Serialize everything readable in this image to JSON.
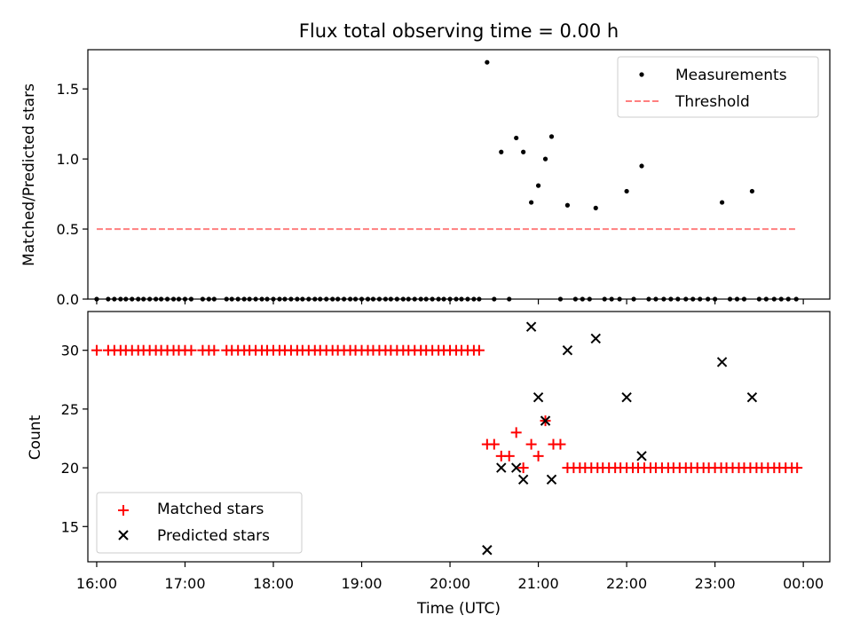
{
  "figure": {
    "title": "Flux total observing time = 0.00 h"
  },
  "chart_data": [
    {
      "type": "scatter",
      "panel": "top",
      "ylabel": "Matched/Predicted stars",
      "xlabel": "",
      "xlim": [
        15.9,
        24.3
      ],
      "ylim": [
        0,
        1.78
      ],
      "yticks": [
        0.0,
        0.5,
        1.0,
        1.5
      ],
      "ytick_labels": [
        "0.0",
        "0.5",
        "1.0",
        "1.5"
      ],
      "legend": {
        "placement": "upper-right",
        "entries": [
          "Measurements",
          "Threshold"
        ]
      },
      "series": [
        {
          "name": "Measurements",
          "kind": "points",
          "color": "#000000",
          "points": [
            [
              16.0,
              0
            ],
            [
              16.13,
              0
            ],
            [
              16.2,
              0
            ],
            [
              16.27,
              0
            ],
            [
              16.33,
              0
            ],
            [
              16.4,
              0
            ],
            [
              16.47,
              0
            ],
            [
              16.53,
              0
            ],
            [
              16.6,
              0
            ],
            [
              16.67,
              0
            ],
            [
              16.73,
              0
            ],
            [
              16.8,
              0
            ],
            [
              16.87,
              0
            ],
            [
              16.93,
              0
            ],
            [
              17.0,
              0
            ],
            [
              17.07,
              0
            ],
            [
              17.2,
              0
            ],
            [
              17.27,
              0
            ],
            [
              17.33,
              0
            ],
            [
              17.47,
              0
            ],
            [
              17.53,
              0
            ],
            [
              17.6,
              0
            ],
            [
              17.67,
              0
            ],
            [
              17.73,
              0
            ],
            [
              17.8,
              0
            ],
            [
              17.87,
              0
            ],
            [
              17.93,
              0
            ],
            [
              18.0,
              0
            ],
            [
              18.07,
              0
            ],
            [
              18.13,
              0
            ],
            [
              18.2,
              0
            ],
            [
              18.27,
              0
            ],
            [
              18.33,
              0
            ],
            [
              18.4,
              0
            ],
            [
              18.47,
              0
            ],
            [
              18.53,
              0
            ],
            [
              18.6,
              0
            ],
            [
              18.67,
              0
            ],
            [
              18.73,
              0
            ],
            [
              18.8,
              0
            ],
            [
              18.87,
              0
            ],
            [
              18.93,
              0
            ],
            [
              19.0,
              0
            ],
            [
              19.07,
              0
            ],
            [
              19.13,
              0
            ],
            [
              19.2,
              0
            ],
            [
              19.27,
              0
            ],
            [
              19.33,
              0
            ],
            [
              19.4,
              0
            ],
            [
              19.47,
              0
            ],
            [
              19.53,
              0
            ],
            [
              19.6,
              0
            ],
            [
              19.67,
              0
            ],
            [
              19.73,
              0
            ],
            [
              19.8,
              0
            ],
            [
              19.87,
              0
            ],
            [
              19.93,
              0
            ],
            [
              20.0,
              0
            ],
            [
              20.07,
              0
            ],
            [
              20.13,
              0
            ],
            [
              20.2,
              0
            ],
            [
              20.27,
              0
            ],
            [
              20.33,
              0
            ],
            [
              20.42,
              1.69
            ],
            [
              20.5,
              0
            ],
            [
              20.58,
              1.05
            ],
            [
              20.67,
              0
            ],
            [
              20.75,
              1.15
            ],
            [
              20.83,
              1.05
            ],
            [
              20.92,
              0.69
            ],
            [
              21.0,
              0.81
            ],
            [
              21.08,
              1.0
            ],
            [
              21.15,
              1.16
            ],
            [
              21.25,
              0
            ],
            [
              21.33,
              0.67
            ],
            [
              21.42,
              0
            ],
            [
              21.5,
              0
            ],
            [
              21.58,
              0
            ],
            [
              21.65,
              0.65
            ],
            [
              21.75,
              0
            ],
            [
              21.83,
              0
            ],
            [
              21.92,
              0
            ],
            [
              22.0,
              0.77
            ],
            [
              22.08,
              0
            ],
            [
              22.17,
              0.95
            ],
            [
              22.25,
              0
            ],
            [
              22.33,
              0
            ],
            [
              22.42,
              0
            ],
            [
              22.5,
              0
            ],
            [
              22.58,
              0
            ],
            [
              22.67,
              0
            ],
            [
              22.75,
              0
            ],
            [
              22.83,
              0
            ],
            [
              22.92,
              0
            ],
            [
              23.0,
              0
            ],
            [
              23.08,
              0.69
            ],
            [
              23.17,
              0
            ],
            [
              23.25,
              0
            ],
            [
              23.33,
              0
            ],
            [
              23.42,
              0.77
            ],
            [
              23.5,
              0
            ],
            [
              23.58,
              0
            ],
            [
              23.67,
              0
            ],
            [
              23.75,
              0
            ],
            [
              23.83,
              0
            ],
            [
              23.92,
              0
            ]
          ]
        },
        {
          "name": "Threshold",
          "kind": "dashed-line",
          "color": "#ff7f7f",
          "points": [
            [
              16.0,
              0.5
            ],
            [
              23.92,
              0.5
            ]
          ]
        }
      ]
    },
    {
      "type": "scatter",
      "panel": "bottom",
      "ylabel": "Count",
      "xlabel": "Time (UTC)",
      "xlim": [
        15.9,
        24.3
      ],
      "ylim": [
        12,
        33.3
      ],
      "yticks": [
        15,
        20,
        25,
        30
      ],
      "ytick_labels": [
        "15",
        "20",
        "25",
        "30"
      ],
      "xticks": [
        16,
        17,
        18,
        19,
        20,
        21,
        22,
        23,
        24
      ],
      "xtick_labels": [
        "16:00",
        "17:00",
        "18:00",
        "19:00",
        "20:00",
        "21:00",
        "22:00",
        "23:00",
        "00:00"
      ],
      "legend": {
        "placement": "lower-left",
        "entries": [
          "Matched stars",
          "Predicted stars"
        ]
      },
      "series": [
        {
          "name": "Matched stars",
          "kind": "plus",
          "color": "#ff0000",
          "points": [
            [
              16.0,
              30
            ],
            [
              16.13,
              30
            ],
            [
              16.2,
              30
            ],
            [
              16.27,
              30
            ],
            [
              16.33,
              30
            ],
            [
              16.4,
              30
            ],
            [
              16.47,
              30
            ],
            [
              16.53,
              30
            ],
            [
              16.6,
              30
            ],
            [
              16.67,
              30
            ],
            [
              16.73,
              30
            ],
            [
              16.8,
              30
            ],
            [
              16.87,
              30
            ],
            [
              16.93,
              30
            ],
            [
              17.0,
              30
            ],
            [
              17.07,
              30
            ],
            [
              17.2,
              30
            ],
            [
              17.27,
              30
            ],
            [
              17.33,
              30
            ],
            [
              17.47,
              30
            ],
            [
              17.53,
              30
            ],
            [
              17.6,
              30
            ],
            [
              17.67,
              30
            ],
            [
              17.73,
              30
            ],
            [
              17.8,
              30
            ],
            [
              17.87,
              30
            ],
            [
              17.93,
              30
            ],
            [
              18.0,
              30
            ],
            [
              18.07,
              30
            ],
            [
              18.13,
              30
            ],
            [
              18.2,
              30
            ],
            [
              18.27,
              30
            ],
            [
              18.33,
              30
            ],
            [
              18.4,
              30
            ],
            [
              18.47,
              30
            ],
            [
              18.53,
              30
            ],
            [
              18.6,
              30
            ],
            [
              18.67,
              30
            ],
            [
              18.73,
              30
            ],
            [
              18.8,
              30
            ],
            [
              18.87,
              30
            ],
            [
              18.93,
              30
            ],
            [
              19.0,
              30
            ],
            [
              19.07,
              30
            ],
            [
              19.13,
              30
            ],
            [
              19.2,
              30
            ],
            [
              19.27,
              30
            ],
            [
              19.33,
              30
            ],
            [
              19.4,
              30
            ],
            [
              19.47,
              30
            ],
            [
              19.53,
              30
            ],
            [
              19.6,
              30
            ],
            [
              19.67,
              30
            ],
            [
              19.73,
              30
            ],
            [
              19.8,
              30
            ],
            [
              19.87,
              30
            ],
            [
              19.93,
              30
            ],
            [
              20.0,
              30
            ],
            [
              20.07,
              30
            ],
            [
              20.13,
              30
            ],
            [
              20.2,
              30
            ],
            [
              20.27,
              30
            ],
            [
              20.33,
              30
            ],
            [
              20.42,
              22
            ],
            [
              20.5,
              22
            ],
            [
              20.58,
              21
            ],
            [
              20.67,
              21
            ],
            [
              20.75,
              23
            ],
            [
              20.83,
              20
            ],
            [
              20.92,
              22
            ],
            [
              21.0,
              21
            ],
            [
              21.08,
              24
            ],
            [
              21.17,
              22
            ],
            [
              21.25,
              22
            ],
            [
              21.33,
              20
            ],
            [
              21.4,
              20
            ],
            [
              21.47,
              20
            ],
            [
              21.53,
              20
            ],
            [
              21.6,
              20
            ],
            [
              21.67,
              20
            ],
            [
              21.73,
              20
            ],
            [
              21.8,
              20
            ],
            [
              21.87,
              20
            ],
            [
              21.93,
              20
            ],
            [
              22.0,
              20
            ],
            [
              22.07,
              20
            ],
            [
              22.13,
              20
            ],
            [
              22.2,
              20
            ],
            [
              22.27,
              20
            ],
            [
              22.33,
              20
            ],
            [
              22.4,
              20
            ],
            [
              22.47,
              20
            ],
            [
              22.53,
              20
            ],
            [
              22.6,
              20
            ],
            [
              22.67,
              20
            ],
            [
              22.73,
              20
            ],
            [
              22.8,
              20
            ],
            [
              22.87,
              20
            ],
            [
              22.93,
              20
            ],
            [
              23.0,
              20
            ],
            [
              23.07,
              20
            ],
            [
              23.13,
              20
            ],
            [
              23.2,
              20
            ],
            [
              23.27,
              20
            ],
            [
              23.33,
              20
            ],
            [
              23.4,
              20
            ],
            [
              23.47,
              20
            ],
            [
              23.53,
              20
            ],
            [
              23.6,
              20
            ],
            [
              23.67,
              20
            ],
            [
              23.73,
              20
            ],
            [
              23.8,
              20
            ],
            [
              23.87,
              20
            ],
            [
              23.93,
              20
            ]
          ]
        },
        {
          "name": "Predicted stars",
          "kind": "x",
          "color": "#000000",
          "points": [
            [
              20.42,
              13
            ],
            [
              20.58,
              20
            ],
            [
              20.75,
              20
            ],
            [
              20.83,
              19
            ],
            [
              20.92,
              32
            ],
            [
              21.0,
              26
            ],
            [
              21.08,
              24
            ],
            [
              21.15,
              19
            ],
            [
              21.33,
              30
            ],
            [
              21.65,
              31
            ],
            [
              22.0,
              26
            ],
            [
              22.17,
              21
            ],
            [
              23.08,
              29
            ],
            [
              23.42,
              26
            ]
          ]
        }
      ]
    }
  ]
}
